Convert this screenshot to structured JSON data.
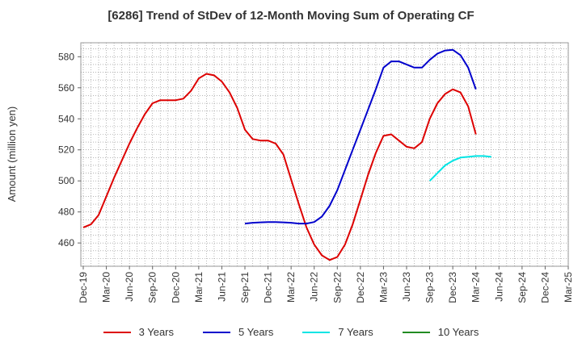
{
  "chart_data": {
    "type": "line",
    "title": "[6286]  Trend of StDev of 12-Month Moving Sum of Operating CF",
    "ylabel": "Amount (million yen)",
    "xlabel": "",
    "x_tick_labels": [
      "Dec-19",
      "Mar-20",
      "Jun-20",
      "Sep-20",
      "Dec-20",
      "Mar-21",
      "Jun-21",
      "Sep-21",
      "Dec-21",
      "Mar-22",
      "Jun-22",
      "Sep-22",
      "Dec-22",
      "Mar-23",
      "Jun-23",
      "Sep-23",
      "Dec-23",
      "Mar-24",
      "Jun-24",
      "Sep-24",
      "Dec-24",
      "Mar-25"
    ],
    "y_ticks": [
      460,
      480,
      500,
      520,
      540,
      560,
      580
    ],
    "ylim": [
      445,
      589
    ],
    "grid": true,
    "legend_position": "bottom",
    "series": [
      {
        "name": "3 Years",
        "color": "#dd0000",
        "start_index": 0,
        "values": [
          470,
          472,
          478,
          490,
          502,
          513,
          524,
          534,
          543,
          550,
          552,
          552,
          552,
          553,
          558,
          566,
          569,
          568,
          564,
          557,
          547,
          533,
          527,
          526,
          526,
          524,
          517,
          501,
          485,
          470,
          459,
          452,
          449,
          451,
          459,
          472,
          488,
          504,
          518,
          529,
          530,
          526,
          522,
          521,
          525,
          540,
          550,
          556,
          559,
          557,
          548,
          530
        ]
      },
      {
        "name": "5 Years",
        "color": "#0000cc",
        "start_index": 21,
        "values": [
          472.5,
          473,
          473.3,
          473.5,
          473.5,
          473.3,
          473,
          472.5,
          472.5,
          473.5,
          477,
          484,
          494,
          507,
          520,
          533,
          546,
          559,
          573,
          577,
          577,
          575,
          573,
          573,
          578,
          582,
          584,
          584.5,
          581,
          573,
          559
        ]
      },
      {
        "name": "7 Years",
        "color": "#00e5e5",
        "start_index": 45,
        "values": [
          500,
          505,
          510,
          513,
          515,
          515.5,
          516,
          516,
          515.5
        ]
      },
      {
        "name": "10 Years",
        "color": "#228b22",
        "start_index": 0,
        "values": []
      }
    ]
  }
}
